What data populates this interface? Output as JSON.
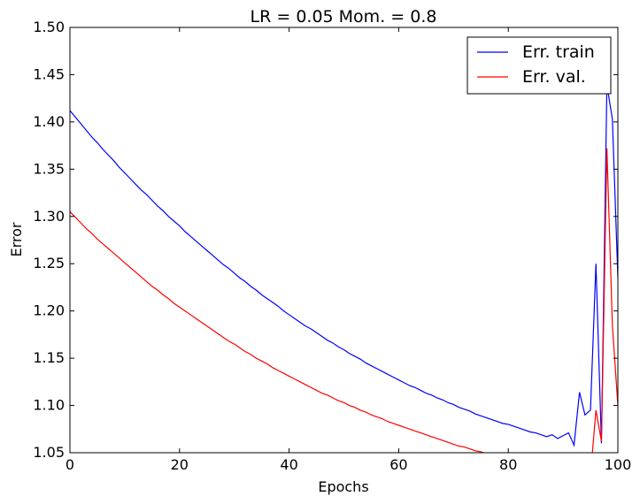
{
  "chart_data": {
    "type": "line",
    "title": "LR = 0.05 Mom. = 0.8",
    "xlabel": "Epochs",
    "ylabel": "Error",
    "xlim": [
      0,
      100
    ],
    "ylim": [
      1.05,
      1.5
    ],
    "xticks": [
      "0",
      "20",
      "40",
      "60",
      "80",
      "100"
    ],
    "yticks": [
      "1.05",
      "1.10",
      "1.15",
      "1.20",
      "1.25",
      "1.30",
      "1.35",
      "1.40",
      "1.45",
      "1.50"
    ],
    "grid": false,
    "legend_position": "top-right",
    "x": [
      0,
      1,
      2,
      3,
      4,
      5,
      6,
      7,
      8,
      9,
      10,
      11,
      12,
      13,
      14,
      15,
      16,
      17,
      18,
      19,
      20,
      21,
      22,
      23,
      24,
      25,
      26,
      27,
      28,
      29,
      30,
      31,
      32,
      33,
      34,
      35,
      36,
      37,
      38,
      39,
      40,
      41,
      42,
      43,
      44,
      45,
      46,
      47,
      48,
      49,
      50,
      51,
      52,
      53,
      54,
      55,
      56,
      57,
      58,
      59,
      60,
      61,
      62,
      63,
      64,
      65,
      66,
      67,
      68,
      69,
      70,
      71,
      72,
      73,
      74,
      75,
      76,
      77,
      78,
      79,
      80,
      81,
      82,
      83,
      84,
      85,
      86,
      87,
      88,
      89,
      90,
      91,
      92,
      93,
      94,
      95,
      96,
      97,
      98,
      99,
      100
    ],
    "series": [
      {
        "name": "Err. train",
        "color": "#0000ff",
        "values": [
          1.412,
          1.405,
          1.398,
          1.391,
          1.384,
          1.378,
          1.371,
          1.365,
          1.359,
          1.352,
          1.346,
          1.34,
          1.334,
          1.328,
          1.323,
          1.317,
          1.311,
          1.306,
          1.3,
          1.295,
          1.29,
          1.284,
          1.279,
          1.274,
          1.269,
          1.264,
          1.259,
          1.254,
          1.249,
          1.245,
          1.24,
          1.235,
          1.231,
          1.226,
          1.222,
          1.217,
          1.213,
          1.209,
          1.205,
          1.2,
          1.196,
          1.192,
          1.188,
          1.184,
          1.181,
          1.177,
          1.173,
          1.169,
          1.166,
          1.162,
          1.159,
          1.155,
          1.152,
          1.149,
          1.145,
          1.142,
          1.139,
          1.136,
          1.133,
          1.13,
          1.127,
          1.124,
          1.121,
          1.119,
          1.116,
          1.113,
          1.111,
          1.108,
          1.106,
          1.103,
          1.101,
          1.098,
          1.096,
          1.094,
          1.091,
          1.089,
          1.087,
          1.085,
          1.083,
          1.081,
          1.08,
          1.078,
          1.076,
          1.074,
          1.072,
          1.071,
          1.069,
          1.067,
          1.069,
          1.065,
          1.068,
          1.071,
          1.058,
          1.114,
          1.09,
          1.095,
          1.25,
          1.06,
          1.439,
          1.403,
          1.235
        ]
      },
      {
        "name": "Err. val.",
        "color": "#ff0000",
        "values": [
          1.305,
          1.299,
          1.293,
          1.287,
          1.282,
          1.276,
          1.271,
          1.266,
          1.261,
          1.256,
          1.251,
          1.246,
          1.241,
          1.236,
          1.231,
          1.226,
          1.222,
          1.217,
          1.213,
          1.208,
          1.204,
          1.2,
          1.196,
          1.192,
          1.188,
          1.184,
          1.18,
          1.176,
          1.172,
          1.168,
          1.165,
          1.161,
          1.157,
          1.154,
          1.15,
          1.147,
          1.144,
          1.14,
          1.137,
          1.134,
          1.131,
          1.128,
          1.125,
          1.122,
          1.119,
          1.116,
          1.113,
          1.111,
          1.108,
          1.105,
          1.103,
          1.1,
          1.098,
          1.095,
          1.093,
          1.09,
          1.088,
          1.086,
          1.083,
          1.081,
          1.079,
          1.077,
          1.075,
          1.073,
          1.071,
          1.069,
          1.067,
          1.065,
          1.063,
          1.061,
          1.059,
          1.057,
          1.056,
          1.054,
          1.052,
          1.051,
          1.049,
          1.048,
          1.046,
          1.045,
          1.043,
          1.042,
          1.041,
          1.039,
          1.038,
          1.037,
          1.036,
          1.034,
          1.033,
          1.032,
          1.031,
          1.03,
          1.029,
          1.028,
          1.027,
          1.026,
          1.095,
          1.062,
          1.372,
          1.185,
          1.1
        ]
      }
    ]
  }
}
